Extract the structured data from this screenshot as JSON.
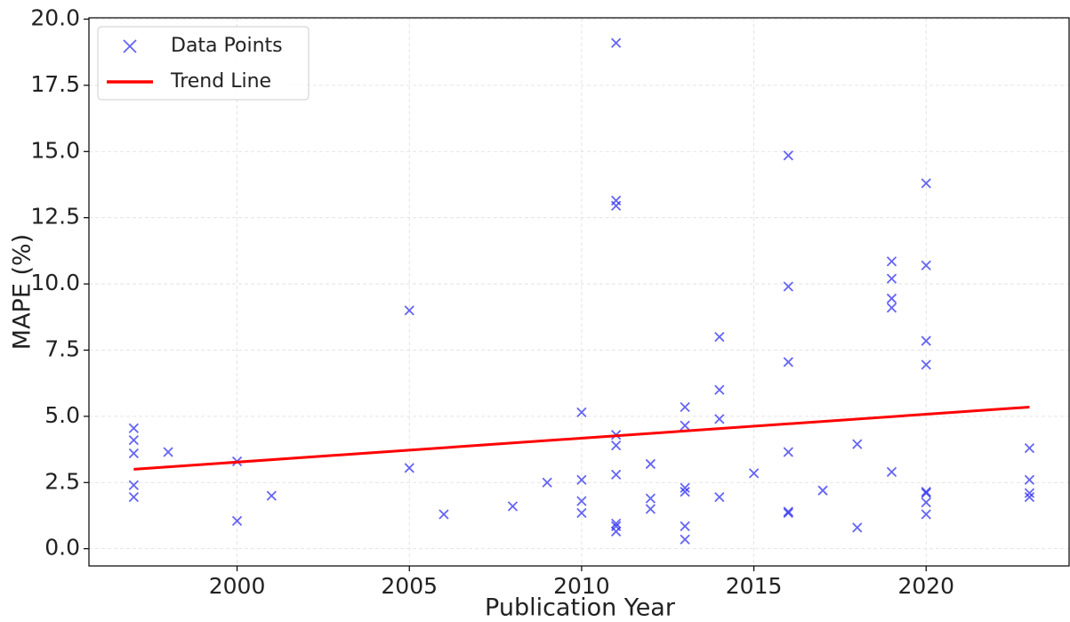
{
  "chart_data": {
    "type": "scatter",
    "xlabel": "Publication Year",
    "ylabel": "MAPE (%)",
    "xlim": [
      1995.7,
      2024.15
    ],
    "ylim": [
      -0.65,
      20.05
    ],
    "xticks": [
      2000,
      2005,
      2010,
      2015,
      2020
    ],
    "yticks": [
      {
        "value": 0,
        "label": "0.0"
      },
      2.5,
      {
        "value": 5,
        "label": "5.0"
      },
      7.5,
      {
        "value": 10,
        "label": "10.0"
      },
      12.5,
      {
        "value": 15,
        "label": "15.0"
      },
      17.5,
      {
        "value": 20,
        "label": "20.0"
      }
    ],
    "grid": true,
    "legend": "upper left",
    "series": [
      {
        "name": "Data Points",
        "color": "#3030f0",
        "marker": "x",
        "x": [
          1997,
          1997,
          1997,
          1997,
          1997,
          1998,
          2000,
          2000,
          2001,
          2005,
          2005,
          2006,
          2008,
          2009,
          2010,
          2010,
          2010,
          2010,
          2011,
          2011,
          2011,
          2011,
          2011,
          2011,
          2011,
          2011,
          2011,
          2012,
          2012,
          2012,
          2013,
          2013,
          2013,
          2013,
          2013,
          2013,
          2014,
          2014,
          2014,
          2014,
          2015,
          2016,
          2016,
          2016,
          2016,
          2016,
          2016,
          2017,
          2018,
          2018,
          2019,
          2019,
          2019,
          2019,
          2019,
          2020,
          2020,
          2020,
          2020,
          2020,
          2020,
          2020,
          2020,
          2023,
          2023,
          2023,
          2023
        ],
        "values": [
          4.55,
          4.1,
          3.6,
          2.4,
          1.95,
          3.65,
          3.3,
          1.05,
          2.0,
          9.0,
          3.05,
          1.3,
          1.6,
          2.5,
          5.15,
          2.6,
          1.8,
          1.35,
          19.1,
          13.15,
          12.95,
          4.3,
          3.9,
          2.8,
          0.95,
          0.85,
          0.65,
          3.2,
          1.9,
          1.5,
          5.35,
          4.65,
          2.3,
          2.15,
          0.85,
          0.35,
          8.0,
          6.0,
          4.9,
          1.95,
          2.85,
          14.85,
          9.9,
          7.05,
          3.65,
          1.4,
          1.35,
          2.2,
          3.95,
          0.8,
          10.85,
          10.2,
          9.45,
          9.1,
          2.9,
          13.8,
          10.7,
          7.85,
          6.95,
          2.15,
          2.1,
          1.75,
          1.3,
          3.8,
          2.6,
          2.1,
          1.95
        ]
      },
      {
        "name": "Trend Line",
        "color": "#ff0000",
        "marker": "line",
        "x": [
          1997,
          2023
        ],
        "values": [
          3.0,
          5.35
        ]
      }
    ]
  }
}
